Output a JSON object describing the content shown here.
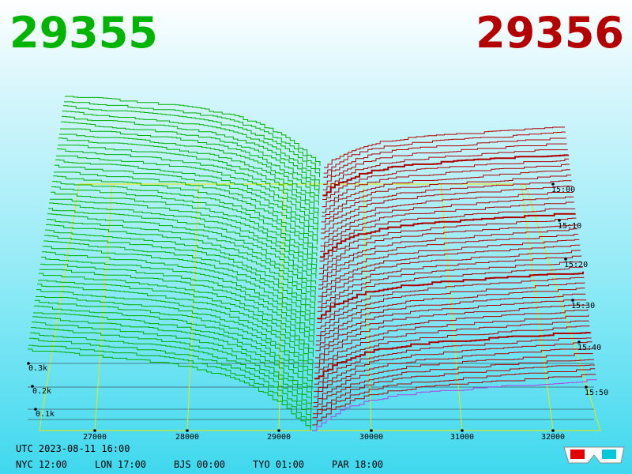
{
  "header": {
    "bid": "29355",
    "ask": "29356"
  },
  "price_axis": [
    "27000",
    "28000",
    "29000",
    "30000",
    "31000",
    "32000"
  ],
  "depth_axis": [
    "0.3k",
    "0.2k",
    "0.1k"
  ],
  "time_axis": [
    "15:00",
    "15:10",
    "15:20",
    "15:30",
    "15:40",
    "15:50"
  ],
  "footer": {
    "utc": "UTC 2023-08-11 16:00",
    "zones": [
      "NYC 12:00",
      "LON 17:00",
      "BJS 00:00",
      "TYO 01:00",
      "PAR 18:00"
    ]
  }
}
